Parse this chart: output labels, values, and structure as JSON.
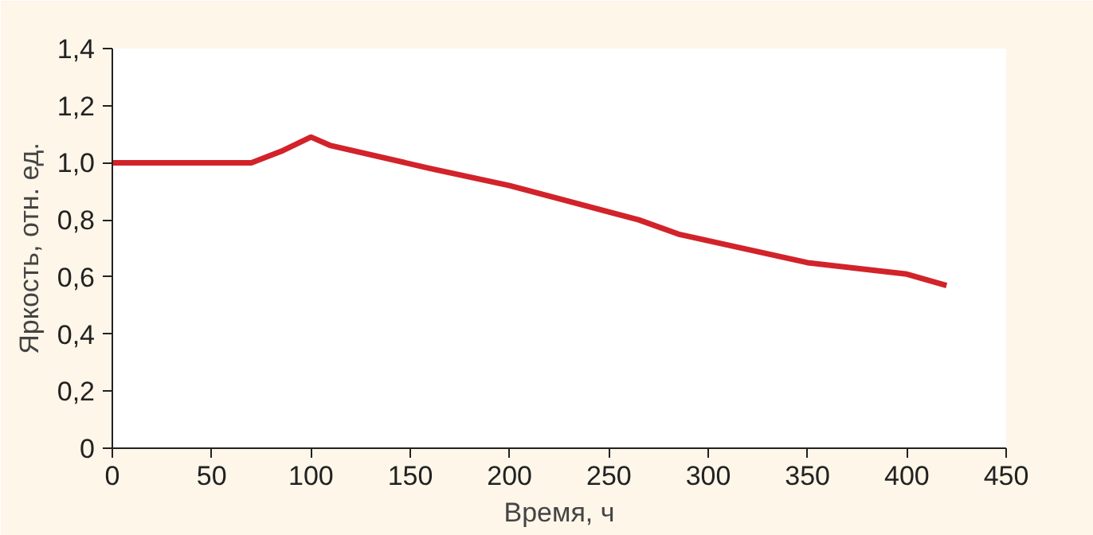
{
  "chart_data": {
    "type": "line",
    "xlabel": "Время, ч",
    "ylabel": "Яркость, отн. ед.",
    "x": [
      0,
      70,
      85,
      100,
      110,
      160,
      200,
      265,
      285,
      350,
      400,
      420
    ],
    "series": [
      {
        "color": "#d2232a",
        "values": [
          1.0,
          1.0,
          1.04,
          1.09,
          1.06,
          0.98,
          0.92,
          0.8,
          0.75,
          0.65,
          0.61,
          0.57
        ]
      }
    ],
    "xlim": [
      0,
      450
    ],
    "ylim": [
      0,
      1.4
    ],
    "xticks": [
      0,
      50,
      100,
      150,
      200,
      250,
      300,
      350,
      400,
      450
    ],
    "yticks": [
      0,
      {
        "value": 0.2,
        "label": "0,2"
      },
      {
        "value": 0.4,
        "label": "0,4"
      },
      {
        "value": 0.6,
        "label": "0,6"
      },
      {
        "value": 0.8,
        "label": "0,8"
      },
      {
        "value": 1.0,
        "label": "1,0"
      },
      {
        "value": 1.2,
        "label": "1,2"
      },
      {
        "value": 1.4,
        "label": "1,4"
      }
    ],
    "marker": "none",
    "line_style": "solid"
  }
}
